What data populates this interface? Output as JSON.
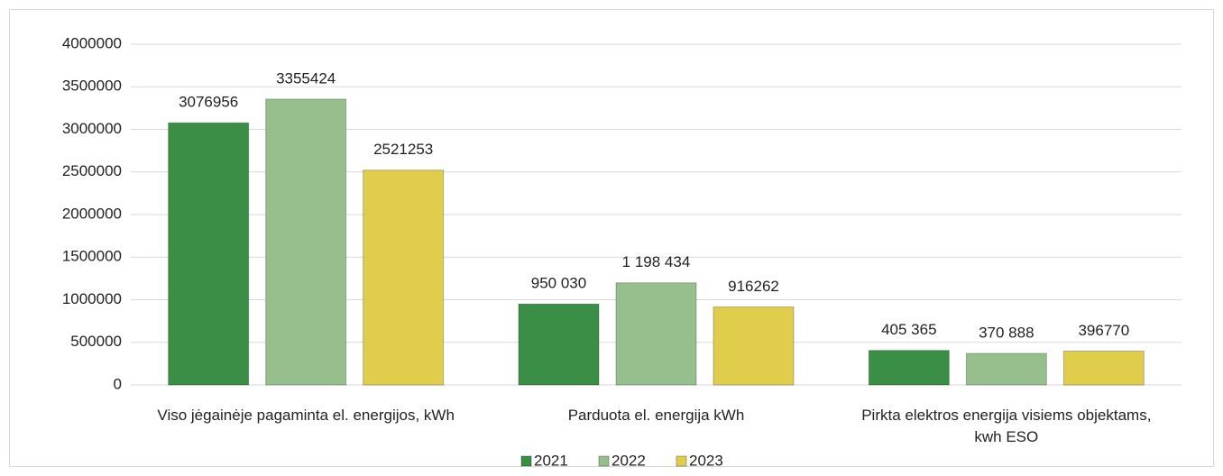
{
  "chart_data": {
    "type": "bar",
    "categories": [
      "Viso jėgainėje pagaminta el. energijos, kWh",
      "Parduota el. energija kWh",
      "Pirkta elektros energija visiems objektams, kwh ESO"
    ],
    "series": [
      {
        "name": "2021",
        "color": "#3b8e46",
        "values": [
          3076956,
          950030,
          405365
        ],
        "value_labels": [
          "3076956",
          "950 030",
          "405 365"
        ]
      },
      {
        "name": "2022",
        "color": "#97bf8d",
        "values": [
          3355424,
          1198434,
          370888
        ],
        "value_labels": [
          "3355424",
          "1 198 434",
          "370 888"
        ]
      },
      {
        "name": "2023",
        "color": "#e1cd4c",
        "values": [
          2521253,
          916262,
          396770
        ],
        "value_labels": [
          "2521253",
          "916262",
          "396770"
        ]
      }
    ],
    "ylim": [
      0,
      4000000
    ],
    "yticks": [
      0,
      500000,
      1000000,
      1500000,
      2000000,
      2500000,
      3000000,
      3500000,
      4000000
    ],
    "grid": true,
    "legend": "bottom"
  }
}
